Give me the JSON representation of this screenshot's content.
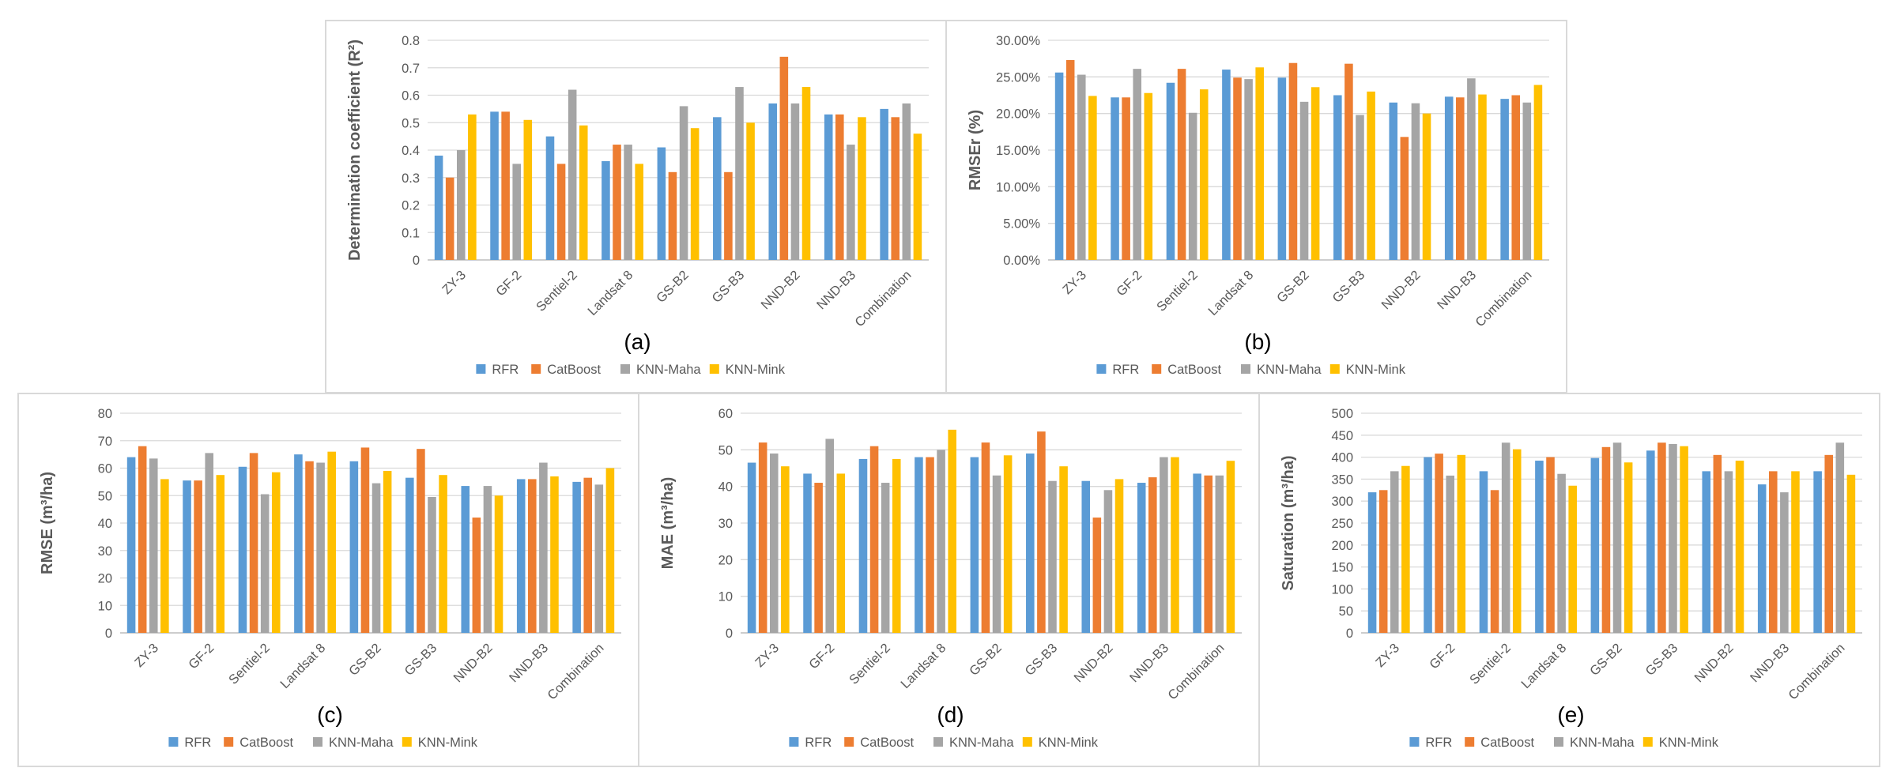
{
  "colors": {
    "RFR": "#5b9bd5",
    "CatBoost": "#ed7d31",
    "KNN-Maha": "#a5a5a5",
    "KNN-Mink": "#ffc000"
  },
  "chart_data": [
    {
      "id": "a",
      "type": "bar",
      "panel_label": "(a)",
      "ylabel": "Determination coefficient (R²)",
      "ylim": [
        0,
        0.8
      ],
      "ytick_step": 0.1,
      "ytick_format": "decimal1",
      "categories": [
        "ZY-3",
        "GF-2",
        "Sentiel-2",
        "Landsat 8",
        "GS-B2",
        "GS-B3",
        "NND-B2",
        "NND-B3",
        "Combination"
      ],
      "series": [
        {
          "name": "RFR",
          "values": [
            0.38,
            0.54,
            0.45,
            0.36,
            0.41,
            0.52,
            0.57,
            0.53,
            0.55
          ]
        },
        {
          "name": "CatBoost",
          "values": [
            0.3,
            0.54,
            0.35,
            0.42,
            0.32,
            0.32,
            0.74,
            0.53,
            0.52
          ]
        },
        {
          "name": "KNN-Maha",
          "values": [
            0.4,
            0.35,
            0.62,
            0.42,
            0.56,
            0.63,
            0.57,
            0.42,
            0.57
          ]
        },
        {
          "name": "KNN-Mink",
          "values": [
            0.53,
            0.51,
            0.49,
            0.35,
            0.48,
            0.5,
            0.63,
            0.52,
            0.46
          ]
        }
      ],
      "legend": "bottom",
      "grid": true
    },
    {
      "id": "b",
      "type": "bar",
      "panel_label": "(b)",
      "ylabel": "RMSEr (%)",
      "ylim": [
        0,
        30
      ],
      "ytick_step": 5,
      "ytick_format": "percent2",
      "categories": [
        "ZY-3",
        "GF-2",
        "Sentiel-2",
        "Landsat 8",
        "GS-B2",
        "GS-B3",
        "NND-B2",
        "NND-B3",
        "Combination"
      ],
      "series": [
        {
          "name": "RFR",
          "values": [
            25.6,
            22.2,
            24.2,
            26.0,
            24.9,
            22.5,
            21.5,
            22.3,
            22.0
          ]
        },
        {
          "name": "CatBoost",
          "values": [
            27.3,
            22.2,
            26.1,
            24.9,
            26.9,
            26.8,
            16.8,
            22.2,
            22.5
          ]
        },
        {
          "name": "KNN-Maha",
          "values": [
            25.3,
            26.1,
            20.1,
            24.7,
            21.6,
            19.8,
            21.4,
            24.8,
            21.5
          ]
        },
        {
          "name": "KNN-Mink",
          "values": [
            22.4,
            22.8,
            23.3,
            26.3,
            23.6,
            23.0,
            20.0,
            22.6,
            23.9
          ]
        }
      ],
      "legend": "bottom",
      "grid": true
    },
    {
      "id": "c",
      "type": "bar",
      "panel_label": "(c)",
      "ylabel": "RMSE (m³/ha)",
      "ylim": [
        0,
        80
      ],
      "ytick_step": 10,
      "ytick_format": "int",
      "categories": [
        "ZY-3",
        "GF-2",
        "Sentiel-2",
        "Landsat 8",
        "GS-B2",
        "GS-B3",
        "NND-B2",
        "NND-B3",
        "Combination"
      ],
      "series": [
        {
          "name": "RFR",
          "values": [
            64,
            55.5,
            60.5,
            65,
            62.5,
            56.5,
            53.5,
            56,
            55
          ]
        },
        {
          "name": "CatBoost",
          "values": [
            68,
            55.5,
            65.5,
            62.5,
            67.5,
            67,
            42,
            56,
            56.5
          ]
        },
        {
          "name": "KNN-Maha",
          "values": [
            63.5,
            65.5,
            50.5,
            62,
            54.5,
            49.5,
            53.5,
            62,
            54
          ]
        },
        {
          "name": "KNN-Mink",
          "values": [
            56,
            57.5,
            58.5,
            66,
            59,
            57.5,
            50,
            57,
            60
          ]
        }
      ],
      "legend": "bottom",
      "grid": true
    },
    {
      "id": "d",
      "type": "bar",
      "panel_label": "(d)",
      "ylabel": "MAE (m³/ha)",
      "ylim": [
        0,
        60
      ],
      "ytick_step": 10,
      "ytick_format": "int",
      "categories": [
        "ZY-3",
        "GF-2",
        "Sentiel-2",
        "Landsat 8",
        "GS-B2",
        "GS-B3",
        "NND-B2",
        "NND-B3",
        "Combination"
      ],
      "series": [
        {
          "name": "RFR",
          "values": [
            46.5,
            43.5,
            47.5,
            48,
            48,
            49,
            41.5,
            41,
            43.5
          ]
        },
        {
          "name": "CatBoost",
          "values": [
            52,
            41,
            51,
            48,
            52,
            55,
            31.5,
            42.5,
            43
          ]
        },
        {
          "name": "KNN-Maha",
          "values": [
            49,
            53,
            41,
            50,
            43,
            41.5,
            39,
            48,
            43
          ]
        },
        {
          "name": "KNN-Mink",
          "values": [
            45.5,
            43.5,
            47.5,
            55.5,
            48.5,
            45.5,
            42,
            48,
            47
          ]
        }
      ],
      "legend": "bottom",
      "grid": true
    },
    {
      "id": "e",
      "type": "bar",
      "panel_label": "(e)",
      "ylabel": "Saturation (m³/ha)",
      "ylim": [
        0,
        500
      ],
      "ytick_step": 50,
      "ytick_format": "int",
      "categories": [
        "ZY-3",
        "GF-2",
        "Sentiel-2",
        "Landsat 8",
        "GS-B2",
        "GS-B3",
        "NND-B2",
        "NND-B3",
        "Combination"
      ],
      "series": [
        {
          "name": "RFR",
          "values": [
            320,
            400,
            368,
            392,
            398,
            415,
            368,
            338,
            368
          ]
        },
        {
          "name": "CatBoost",
          "values": [
            325,
            408,
            325,
            400,
            423,
            433,
            405,
            368,
            405
          ]
        },
        {
          "name": "KNN-Maha",
          "values": [
            368,
            358,
            433,
            362,
            433,
            430,
            368,
            320,
            433
          ]
        },
        {
          "name": "KNN-Mink",
          "values": [
            380,
            405,
            418,
            335,
            388,
            425,
            392,
            368,
            360
          ]
        }
      ],
      "legend": "bottom",
      "grid": true
    }
  ]
}
